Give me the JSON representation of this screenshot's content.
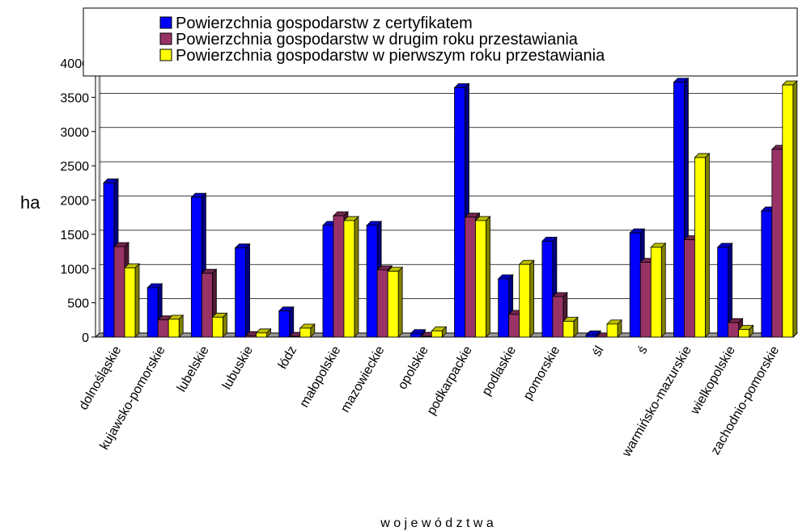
{
  "chart_data": {
    "type": "bar",
    "y_label": "ha",
    "x_label": "w o j e w ó d z t w a",
    "categories": [
      "dolnośląskie",
      "kujawsko-pomorskie",
      "lubelskie",
      "lubuskie",
      "łódz",
      "małopolskie",
      "mazowieckie",
      "opolskie",
      "podkarpackie",
      "podlaskie",
      "pomorskie",
      "śl",
      "ś",
      "warmińsko-mazurskie",
      "wielkopolskie",
      "zachodnio-pomorskie"
    ],
    "series": [
      {
        "name": "Powierzchnia gospodarstw z certyfikatem",
        "color": "#0000ff",
        "values": [
          2250,
          720,
          2040,
          1300,
          380,
          1630,
          1630,
          50,
          3640,
          850,
          1400,
          30,
          1520,
          3720,
          1310,
          1840
        ]
      },
      {
        "name": "Powierzchnia gospodarstw w drugim roku przestawiania",
        "color": "#993366",
        "values": [
          1320,
          250,
          930,
          20,
          10,
          1770,
          980,
          10,
          1750,
          330,
          590,
          0,
          1090,
          1420,
          210,
          2740
        ]
      },
      {
        "name": "Powierzchnia gospodarstw w pierwszym roku przestawiania",
        "color": "#ffff00",
        "values": [
          1010,
          260,
          290,
          60,
          130,
          1700,
          960,
          90,
          1700,
          1060,
          230,
          190,
          1310,
          2620,
          110,
          3680
        ]
      }
    ],
    "ylim": [
      0,
      4000
    ],
    "yticks": [
      0,
      500,
      1000,
      1500,
      2000,
      2500,
      3000,
      3500,
      4000
    ],
    "grid": true
  }
}
